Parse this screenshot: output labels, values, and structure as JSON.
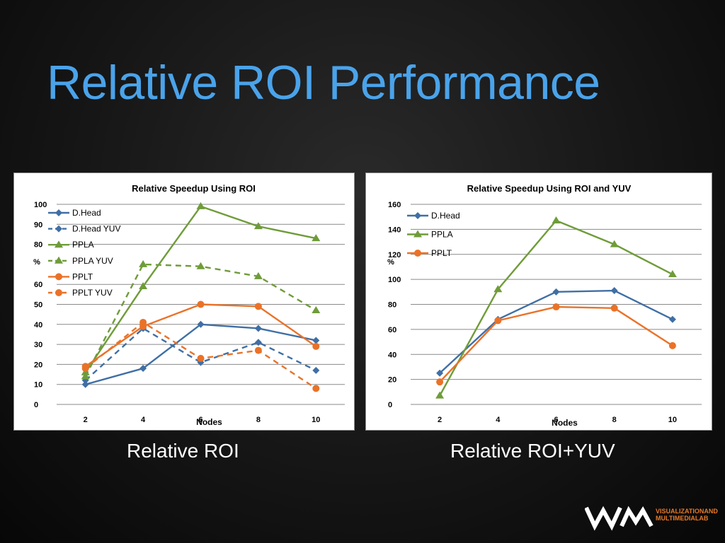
{
  "slide": {
    "title": "Relative ROI Performance",
    "caption_left": "Relative ROI",
    "caption_right": "Relative ROI+YUV",
    "logo": {
      "line1": "VISUALIZATIONAND",
      "line2": "MULTIMEDIALAB"
    }
  },
  "chart_data": [
    {
      "type": "line",
      "title": "Relative Speedup Using ROI",
      "xlabel": "Nodes",
      "ylabel": "%",
      "x": [
        2,
        4,
        6,
        8,
        10
      ],
      "ylim": [
        0,
        100
      ],
      "yticks": [
        0,
        10,
        20,
        30,
        40,
        50,
        60,
        80,
        90,
        100
      ],
      "grid": true,
      "legend": "top-left",
      "series": [
        {
          "name": "D.Head",
          "values": [
            10,
            18,
            40,
            38,
            32
          ],
          "color": "#3f6fa5",
          "marker": "diamond",
          "dash": false
        },
        {
          "name": "D.Head YUV",
          "values": [
            12,
            38,
            21,
            31,
            17
          ],
          "color": "#3f6fa5",
          "marker": "diamond",
          "dash": true
        },
        {
          "name": "PPLA",
          "values": [
            16,
            59,
            99,
            89,
            83
          ],
          "color": "#6f9c39",
          "marker": "triangle",
          "dash": false
        },
        {
          "name": "PPLA YUV",
          "values": [
            14,
            70,
            69,
            64,
            47
          ],
          "color": "#6f9c39",
          "marker": "triangle",
          "dash": true
        },
        {
          "name": "PPLT",
          "values": [
            19,
            39,
            50,
            49,
            29
          ],
          "color": "#ea7228",
          "marker": "circle",
          "dash": false
        },
        {
          "name": "PPLT YUV",
          "values": [
            18,
            41,
            23,
            27,
            8
          ],
          "color": "#ea7228",
          "marker": "circle",
          "dash": true
        }
      ]
    },
    {
      "type": "line",
      "title": "Relative Speedup Using ROI and YUV",
      "xlabel": "Nodes",
      "ylabel": "%",
      "x": [
        2,
        4,
        6,
        8,
        10
      ],
      "ylim": [
        0,
        160
      ],
      "yticks": [
        0,
        20,
        40,
        60,
        80,
        100,
        120,
        140,
        160
      ],
      "grid": true,
      "legend": "top-left",
      "series": [
        {
          "name": "D.Head",
          "values": [
            25,
            68,
            90,
            91,
            68
          ],
          "color": "#3f6fa5",
          "marker": "diamond",
          "dash": false
        },
        {
          "name": "PPLA",
          "values": [
            7,
            92,
            147,
            128,
            104
          ],
          "color": "#6f9c39",
          "marker": "triangle",
          "dash": false
        },
        {
          "name": "PPLT",
          "values": [
            18,
            67,
            78,
            77,
            47
          ],
          "color": "#ea7228",
          "marker": "circle",
          "dash": false
        }
      ]
    }
  ]
}
